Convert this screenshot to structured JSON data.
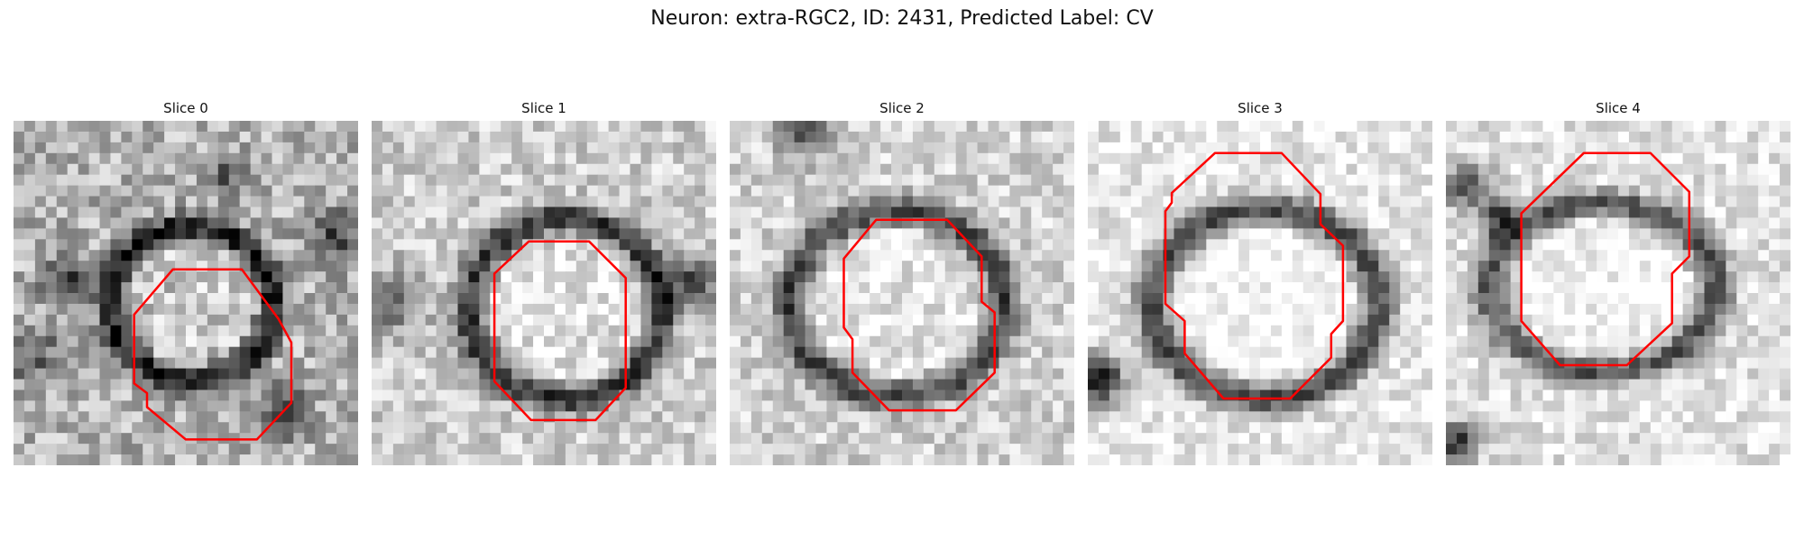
{
  "figure": {
    "suptitle": "Neuron: extra-RGC2, ID: 2431, Predicted Label: CV",
    "contour_color": "#ff0000"
  },
  "panels": [
    {
      "title": "Slice 0",
      "image": "grayscale-microscopy-slice"
    },
    {
      "title": "Slice 1",
      "image": "grayscale-microscopy-slice"
    },
    {
      "title": "Slice 2",
      "image": "grayscale-microscopy-slice"
    },
    {
      "title": "Slice 3",
      "image": "grayscale-microscopy-slice"
    },
    {
      "title": "Slice 4",
      "image": "grayscale-microscopy-slice"
    }
  ]
}
